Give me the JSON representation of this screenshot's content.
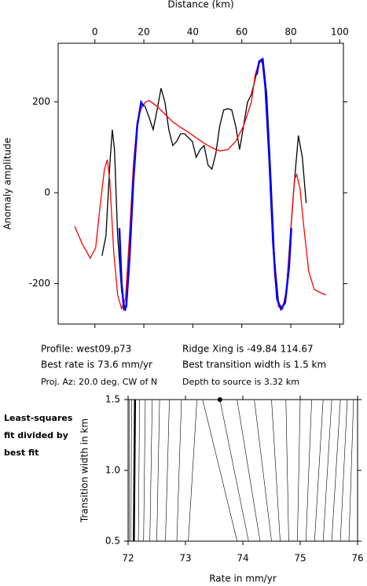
{
  "chart_data": [
    {
      "type": "line",
      "xlabel": "Distance (km)",
      "ylabel": "Anomaly amplitude",
      "xlim": [
        -15,
        101.5
      ],
      "ylim": [
        -289,
        329
      ],
      "xticks": [
        0,
        20,
        40,
        60,
        80,
        100
      ],
      "yticks": [
        -200,
        0,
        200
      ],
      "series": [
        {
          "color": "#000000",
          "x": [
            2.9,
            4.5,
            6.1,
            7.1,
            8,
            9.3,
            10.9,
            12.5,
            14.1,
            15.7,
            17.3,
            18.9,
            20.5,
            22.2,
            23.8,
            25.4,
            27,
            28.6,
            30.2,
            31.8,
            33.4,
            35,
            36.6,
            38.2,
            39.8,
            41.4,
            43,
            44.6,
            46.2,
            47.8,
            49.4,
            51,
            52.6,
            54.3,
            55.9,
            57.5,
            59.1,
            60.7,
            62.3,
            63.9,
            65.5,
            67.1,
            68.7,
            70.2,
            71.8,
            73.4,
            75,
            76.6,
            78.2,
            79.8,
            81.5,
            83.1,
            84.7,
            86.3
          ],
          "values": [
            -139,
            -95,
            61,
            139,
            95,
            -95,
            -216,
            -260,
            -147,
            26,
            147,
            199,
            190,
            165,
            139,
            182,
            230,
            199,
            139,
            104,
            113,
            130,
            130,
            121,
            113,
            78,
            95,
            104,
            61,
            52,
            87,
            147,
            182,
            185,
            182,
            147,
            95,
            147,
            199,
            216,
            251,
            286,
            294,
            216,
            43,
            -147,
            -242,
            -256,
            -216,
            -95,
            26,
            126,
            78,
            -23
          ]
        },
        {
          "color": "#ff0000",
          "x": [
            -8.3,
            -5.1,
            -1.9,
            0.3,
            2.2,
            3.9,
            5.1,
            6.1,
            7.7,
            9.3,
            10.9,
            12.5,
            14.1,
            15.7,
            17.3,
            18.9,
            20.5,
            22.2,
            25.4,
            28.6,
            31.8,
            35,
            38.2,
            41.4,
            44.6,
            47.8,
            51,
            54.3,
            57.5,
            60.7,
            63.9,
            65.5,
            67.1,
            68.7,
            70.2,
            71.8,
            73.4,
            75,
            76.6,
            78.2,
            79.8,
            81.5,
            82.4,
            83.8,
            85.4,
            87.3,
            89.6,
            92.1,
            94.4
          ],
          "values": [
            -74,
            -113,
            -144,
            -121,
            -26,
            52,
            73,
            26,
            -130,
            -225,
            -255,
            -234,
            -95,
            61,
            156,
            185,
            199,
            203,
            190,
            173,
            156,
            144,
            133,
            121,
            109,
            99,
            92,
            95,
            113,
            147,
            199,
            260,
            289,
            286,
            199,
            -9,
            -182,
            -251,
            -256,
            -216,
            -95,
            29,
            40,
            9,
            -78,
            -173,
            -213,
            -220,
            -225
          ]
        },
        {
          "color": "#0000ff",
          "x": [
            10,
            10.9,
            11.9,
            12.8,
            14.1,
            15.7,
            17.3,
            18.9,
            19.9,
            null,
            66.1,
            67.1,
            68.4,
            69.6,
            71.2,
            72.8,
            74.4,
            76,
            77.7,
            79.3,
            80.2
          ],
          "values": [
            -78,
            -199,
            -256,
            -251,
            -147,
            26,
            147,
            199,
            190,
            null,
            260,
            289,
            294,
            234,
            78,
            -113,
            -234,
            -256,
            -242,
            -164,
            -78
          ]
        }
      ],
      "annotations": [
        "Profile: west09.p73",
        "Best rate is 73.6 mm/yr",
        "Proj. Az: 20.0 deg. CW of N",
        "Ridge Xing is -49.84 114.67",
        "Best transition width is 1.5 km",
        "Depth to source is   3.32 km"
      ]
    },
    {
      "type": "line",
      "xlabel": "Rate in mm/yr",
      "ylabel": "Transition width in km",
      "note_lines": [
        "Least-squares",
        "fit divided by",
        "best fit"
      ],
      "xlim": [
        72,
        76
      ],
      "ylim": [
        0.5,
        1.5
      ],
      "xticks": [
        72,
        73,
        74,
        75,
        76
      ],
      "yticks": [
        0.5,
        {
          "value": 1,
          "label": "1.0"
        },
        1.5
      ],
      "best_point": {
        "x": 73.6,
        "y": 1.5
      },
      "series": [
        {
          "color": "#000000",
          "x": [
            72.02,
            72.02
          ],
          "values": [
            0.5,
            1.5
          ]
        },
        {
          "color": "#000000",
          "x": [
            72.05,
            72.06
          ],
          "values": [
            0.5,
            1.5
          ]
        },
        {
          "color": "#000000",
          "x": [
            72.1,
            72.12
          ],
          "values": [
            0.5,
            1.5
          ]
        },
        {
          "color": "#000000",
          "x": [
            72.18,
            72.2
          ],
          "values": [
            0.5,
            1.5
          ]
        },
        {
          "color": "#000000",
          "x": [
            72.27,
            72.3
          ],
          "values": [
            0.5,
            1.5
          ]
        },
        {
          "color": "#000000",
          "x": [
            72.38,
            72.42
          ],
          "values": [
            0.5,
            1.5
          ]
        },
        {
          "color": "#000000",
          "x": [
            72.5,
            72.55
          ],
          "values": [
            0.5,
            1.5
          ]
        },
        {
          "color": "#000000",
          "x": [
            72.65,
            72.72
          ],
          "values": [
            0.5,
            1.5
          ]
        },
        {
          "color": "#000000",
          "x": [
            72.85,
            72.93
          ],
          "values": [
            0.5,
            1.5
          ]
        },
        {
          "color": "#000000",
          "x": [
            73.05,
            73.2
          ],
          "values": [
            0.5,
            1.5
          ]
        },
        {
          "color": "#000000",
          "x": [
            73.9,
            73.3
          ],
          "values": [
            0.5,
            1.5
          ]
        },
        {
          "color": "#000000",
          "x": [
            74.1,
            73.6
          ],
          "values": [
            0.5,
            1.5
          ]
        },
        {
          "color": "#000000",
          "x": [
            74.3,
            73.9
          ],
          "values": [
            0.5,
            1.5
          ]
        },
        {
          "color": "#000000",
          "x": [
            74.5,
            74.2
          ],
          "values": [
            0.5,
            1.5
          ]
        },
        {
          "color": "#000000",
          "x": [
            74.65,
            74.5
          ],
          "values": [
            0.5,
            1.5
          ]
        },
        {
          "color": "#000000",
          "x": [
            74.8,
            74.75
          ],
          "values": [
            0.5,
            1.5
          ]
        },
        {
          "color": "#000000",
          "x": [
            74.95,
            75.0
          ],
          "values": [
            0.5,
            1.5
          ]
        },
        {
          "color": "#000000",
          "x": [
            75.1,
            75.2
          ],
          "values": [
            0.5,
            1.5
          ]
        },
        {
          "color": "#000000",
          "x": [
            75.25,
            75.4
          ],
          "values": [
            0.5,
            1.5
          ]
        },
        {
          "color": "#000000",
          "x": [
            75.4,
            75.55
          ],
          "values": [
            0.5,
            1.5
          ]
        },
        {
          "color": "#000000",
          "x": [
            75.55,
            75.7
          ],
          "values": [
            0.5,
            1.5
          ]
        },
        {
          "color": "#000000",
          "x": [
            75.7,
            75.82
          ],
          "values": [
            0.5,
            1.5
          ]
        },
        {
          "color": "#000000",
          "x": [
            75.85,
            75.93
          ],
          "values": [
            0.5,
            1.5
          ]
        }
      ]
    }
  ]
}
